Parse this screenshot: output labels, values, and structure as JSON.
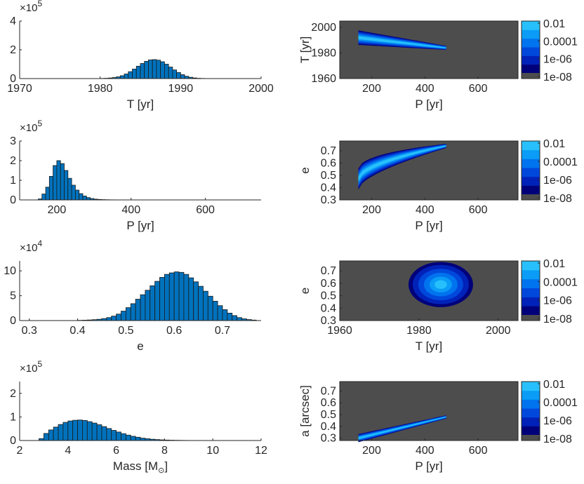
{
  "chart_data": [
    {
      "type": "bar",
      "id": "hist-T",
      "title": "",
      "xlabel": "T [yr]",
      "ylabel": "",
      "xlim": [
        1970,
        2000
      ],
      "ylim": [
        0,
        4
      ],
      "xticks": [
        "1970",
        "1980",
        "1990",
        "2000"
      ],
      "yticks": [
        "0",
        "2",
        "4"
      ],
      "exponent_base": "×10",
      "exponent_power": "5",
      "bin_start": 1979.5,
      "bin_width": 0.5,
      "values": [
        0.005,
        0.01,
        0.02,
        0.04,
        0.07,
        0.12,
        0.2,
        0.32,
        0.48,
        0.66,
        0.86,
        1.05,
        1.2,
        1.3,
        1.32,
        1.28,
        1.17,
        1.0,
        0.8,
        0.6,
        0.42,
        0.27,
        0.16,
        0.09,
        0.045,
        0.02,
        0.01,
        0.004
      ]
    },
    {
      "type": "bar",
      "id": "hist-P",
      "title": "",
      "xlabel": "P [yr]",
      "ylabel": "",
      "xlim": [
        100,
        750
      ],
      "ylim": [
        0,
        3
      ],
      "xticks": [
        "200",
        "400",
        "600"
      ],
      "yticks": [
        "0",
        "1",
        "2",
        "3"
      ],
      "exponent_base": "×10",
      "exponent_power": "5",
      "bin_start": 150,
      "bin_width": 10,
      "values": [
        0.05,
        0.3,
        0.65,
        1.2,
        1.75,
        2.0,
        1.85,
        1.5,
        1.1,
        0.75,
        0.5,
        0.32,
        0.2,
        0.12,
        0.07,
        0.04,
        0.025,
        0.015,
        0.01,
        0.006,
        0.004,
        0.002
      ]
    },
    {
      "type": "bar",
      "id": "hist-e",
      "title": "",
      "xlabel": "e",
      "ylabel": "",
      "xlim": [
        0.28,
        0.78
      ],
      "ylim": [
        0,
        12
      ],
      "xticks": [
        "0.3",
        "0.4",
        "0.5",
        "0.6",
        "0.7"
      ],
      "yticks": [
        "0",
        "5",
        "10"
      ],
      "exponent_base": "×10",
      "exponent_power": "4",
      "bin_start": 0.4,
      "bin_width": 0.01,
      "values": [
        0.05,
        0.08,
        0.12,
        0.18,
        0.26,
        0.4,
        0.6,
        0.9,
        1.3,
        1.9,
        2.6,
        3.4,
        4.3,
        5.2,
        6.1,
        7.0,
        7.9,
        8.7,
        9.3,
        9.6,
        9.8,
        9.7,
        9.3,
        8.6,
        7.8,
        6.9,
        5.9,
        4.9,
        3.9,
        3.0,
        2.2,
        1.5,
        1.0,
        0.6,
        0.35,
        0.2,
        0.1
      ]
    },
    {
      "type": "bar",
      "id": "hist-mass",
      "title": "",
      "xlabel": "Mass [M",
      "xlabel_suffix": "]",
      "ylabel": "",
      "xlim": [
        2,
        12
      ],
      "ylim": [
        0,
        2.5
      ],
      "xticks": [
        "2",
        "4",
        "6",
        "8",
        "10",
        "12"
      ],
      "yticks": [
        "0",
        "1",
        "2"
      ],
      "exponent_base": "×10",
      "exponent_power": "5",
      "bin_start": 2.8,
      "bin_width": 0.2,
      "values": [
        0.08,
        0.3,
        0.45,
        0.57,
        0.68,
        0.77,
        0.83,
        0.86,
        0.87,
        0.85,
        0.8,
        0.74,
        0.67,
        0.59,
        0.51,
        0.43,
        0.36,
        0.29,
        0.23,
        0.18,
        0.14,
        0.1,
        0.075,
        0.055,
        0.04,
        0.028,
        0.02,
        0.014,
        0.01,
        0.007,
        0.005,
        0.003,
        0.002,
        0.001
      ]
    },
    {
      "type": "heatmap",
      "id": "heat-PT",
      "title": "",
      "xlabel": "P [yr]",
      "ylabel": "T [yr]",
      "xlim": [
        80,
        750
      ],
      "ylim": [
        1960,
        2005
      ],
      "xticks": [
        "200",
        "400",
        "600"
      ],
      "yticks": [
        "1960",
        "1980",
        "2000"
      ],
      "colorbar_ticks": [
        "0.01",
        "0.0001",
        "1e-06",
        "1e-08"
      ]
    },
    {
      "type": "heatmap",
      "id": "heat-Pe",
      "title": "",
      "xlabel": "P [yr]",
      "ylabel": "e",
      "xlim": [
        80,
        750
      ],
      "ylim": [
        0.3,
        0.78
      ],
      "xticks": [
        "200",
        "400",
        "600"
      ],
      "yticks": [
        "0.3",
        "0.4",
        "0.5",
        "0.6",
        "0.7"
      ],
      "colorbar_ticks": [
        "0.01",
        "0.0001",
        "1e-06",
        "1e-08"
      ]
    },
    {
      "type": "heatmap",
      "id": "heat-Te",
      "title": "",
      "xlabel": "T [yr]",
      "ylabel": "e",
      "xlim": [
        1960,
        2005
      ],
      "ylim": [
        0.3,
        0.78
      ],
      "xticks": [
        "1960",
        "1980",
        "2000"
      ],
      "yticks": [
        "0.3",
        "0.4",
        "0.5",
        "0.6",
        "0.7"
      ],
      "colorbar_ticks": [
        "0.01",
        "0.0001",
        "1e-06",
        "1e-08"
      ]
    },
    {
      "type": "heatmap",
      "id": "heat-Pa",
      "title": "",
      "xlabel": "P [yr]",
      "ylabel": "a [arcsec]",
      "xlim": [
        80,
        750
      ],
      "ylim": [
        0.28,
        0.78
      ],
      "xticks": [
        "200",
        "400",
        "600"
      ],
      "yticks": [
        "0.3",
        "0.4",
        "0.5",
        "0.6",
        "0.7"
      ],
      "colorbar_ticks": [
        "0.01",
        "0.0001",
        "1e-06",
        "1e-08"
      ]
    }
  ],
  "colors": {
    "bar_fill": "#0072bd",
    "bar_edge": "#1a1a1a",
    "heat_bg": "#4d4d4d",
    "axis": "#262626",
    "colorbar_bottom": "#4d4d4d",
    "colorbar_stops": [
      "#00007a",
      "#0022b8",
      "#0048dc",
      "#0073ee",
      "#0a9cf6",
      "#28c0fc"
    ]
  }
}
